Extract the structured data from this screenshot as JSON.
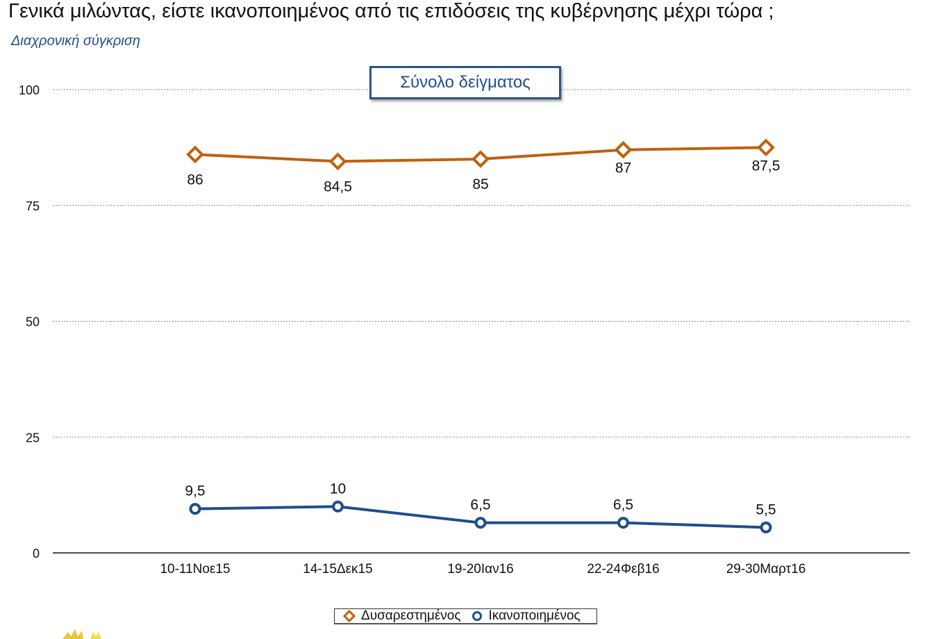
{
  "chart_data": {
    "type": "line",
    "title": "Γενικά μιλώντας, είστε ικανοποιημένος από τις επιδόσεις της κυβέρνησης μέχρι τώρα ;",
    "subtitle": "Διαχρονική σύγκριση",
    "annotation": "Σύνολο δείγματος",
    "categories": [
      "10-11Νοε15",
      "14-15Δεκ15",
      "19-20Ιαν16",
      "22-24Φεβ16",
      "29-30Μαρτ16"
    ],
    "yticks": [
      "0",
      "25",
      "50",
      "75",
      "100"
    ],
    "ylim": [
      0,
      100
    ],
    "grid": true,
    "legend_position": "bottom",
    "series": [
      {
        "name": "Δυσαρεστημένος",
        "color": "#c0600f",
        "marker": "diamond",
        "values": [
          86,
          84.5,
          85,
          87,
          87.5
        ],
        "labels": [
          "86",
          "84,5",
          "85",
          "87",
          "87,5"
        ]
      },
      {
        "name": "Ικανοποιημένος",
        "color": "#1f4e8c",
        "marker": "circle",
        "values": [
          9.5,
          10,
          6.5,
          6.5,
          5.5
        ],
        "labels": [
          "9,5",
          "10",
          "6,5",
          "6,5",
          "5,5"
        ]
      }
    ]
  }
}
